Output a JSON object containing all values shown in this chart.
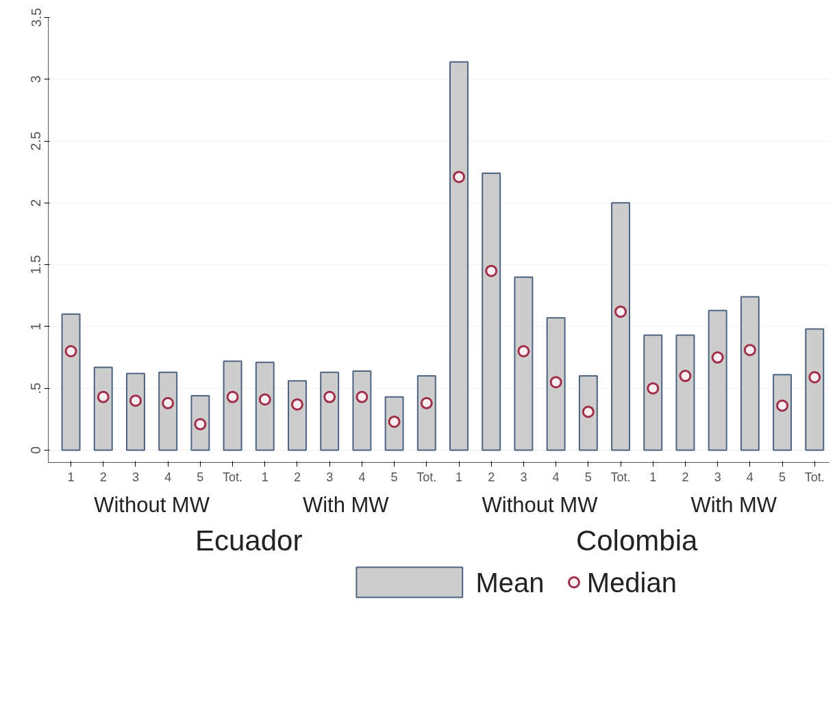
{
  "chart_data": {
    "type": "bar",
    "categories": [
      "1",
      "2",
      "3",
      "4",
      "5",
      "Tot.",
      "1",
      "2",
      "3",
      "4",
      "5",
      "Tot.",
      "1",
      "2",
      "3",
      "4",
      "5",
      "Tot.",
      "1",
      "2",
      "3",
      "4",
      "5",
      "Tot."
    ],
    "series": [
      {
        "name": "Mean",
        "color": "#cdcdcd",
        "values": [
          1.1,
          0.67,
          0.62,
          0.63,
          0.44,
          0.72,
          0.71,
          0.56,
          0.63,
          0.64,
          0.43,
          0.6,
          3.14,
          2.24,
          1.4,
          1.07,
          0.6,
          2.0,
          0.93,
          0.93,
          1.13,
          1.24,
          0.61,
          0.98
        ]
      },
      {
        "name": "Median",
        "type": "scatter",
        "color": "#a0304a",
        "values": [
          0.8,
          0.43,
          0.4,
          0.38,
          0.21,
          0.43,
          0.41,
          0.37,
          0.43,
          0.43,
          0.23,
          0.38,
          2.21,
          1.45,
          0.8,
          0.55,
          0.31,
          1.12,
          0.5,
          0.6,
          0.75,
          0.81,
          0.36,
          0.59
        ]
      }
    ],
    "annotations": [
      "Without MW",
      "With MW",
      "Without MW",
      "With MW",
      "Ecuador",
      "Colombia"
    ],
    "ylim": [
      -0.1,
      3.5
    ],
    "yticks": [
      0,
      {
        "value": 0.5,
        "label": ".5"
      },
      1,
      1.5,
      2,
      2.5,
      3,
      3.5
    ],
    "grid": "y",
    "legend": "bottom",
    "marker": "circle"
  }
}
